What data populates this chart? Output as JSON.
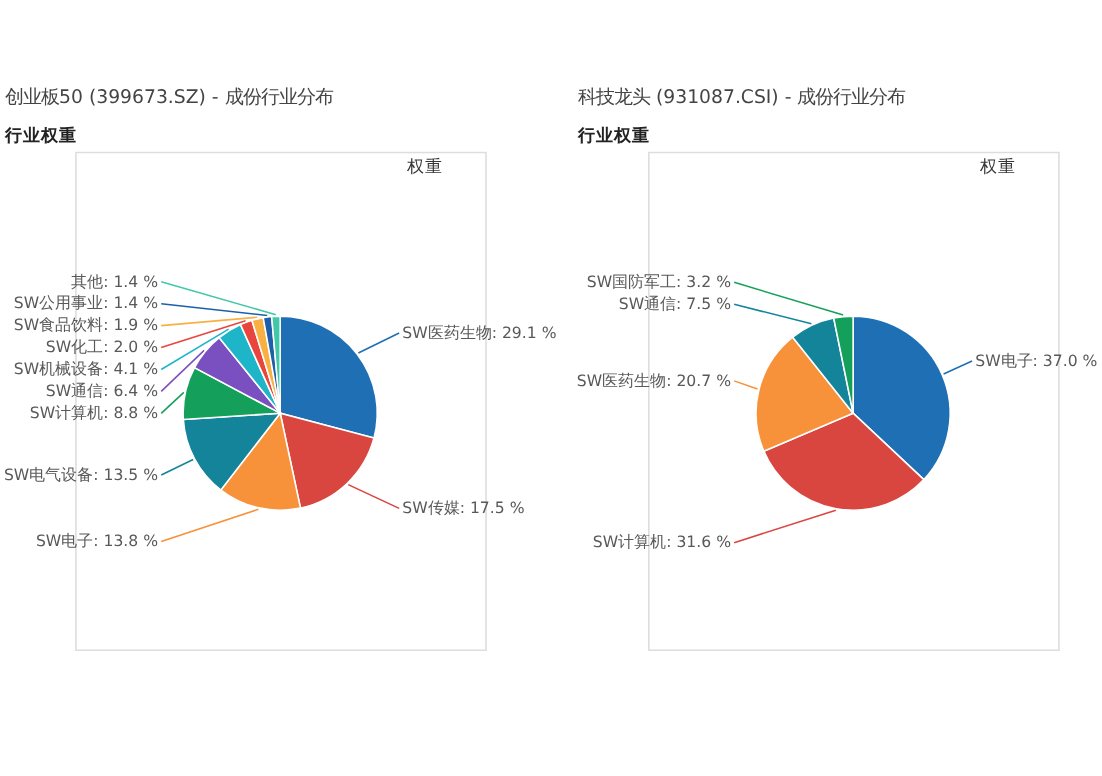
{
  "chart_data": [
    {
      "type": "pie",
      "title": "创业板50 (399673.SZ) - 成份行业分布",
      "subtitle": "行业权重",
      "annotations": [
        "权重"
      ],
      "legend": false,
      "categories": [
        "SW医药生物",
        "SW传媒",
        "SW电子",
        "SW电气设备",
        "SW计算机",
        "SW通信",
        "SW机械设备",
        "SW化工",
        "SW食品饮料",
        "SW公用事业",
        "其他"
      ],
      "values": [
        29.1,
        17.5,
        13.8,
        13.5,
        8.8,
        6.4,
        4.1,
        2.0,
        1.9,
        1.4,
        1.4
      ],
      "value_labels": [
        "29.1 %",
        "17.5 %",
        "13.8 %",
        "13.5 %",
        "8.8 %",
        "6.4 %",
        "4.1 %",
        "2.0 %",
        "1.9 %",
        "1.4 %",
        "1.4 %"
      ],
      "colors": [
        "#1f6fb4",
        "#d9453f",
        "#f7913a",
        "#14849a",
        "#14a05a",
        "#7a4fbf",
        "#1fb5c9",
        "#e8453c",
        "#f9b042",
        "#1d5fa8",
        "#40c8a8"
      ]
    },
    {
      "type": "pie",
      "title": "科技龙头 (931087.CSI) - 成份行业分布",
      "subtitle": "行业权重",
      "annotations": [
        "权重"
      ],
      "legend": false,
      "categories": [
        "SW电子",
        "SW计算机",
        "SW医药生物",
        "SW通信",
        "SW国防军工"
      ],
      "values": [
        37.0,
        31.6,
        20.7,
        7.5,
        3.2
      ],
      "value_labels": [
        "37.0 %",
        "31.6 %",
        "20.7 %",
        "7.5 %",
        "3.2 %"
      ],
      "colors": [
        "#1f6fb4",
        "#d9453f",
        "#f7913a",
        "#14849a",
        "#14a05a"
      ]
    }
  ]
}
